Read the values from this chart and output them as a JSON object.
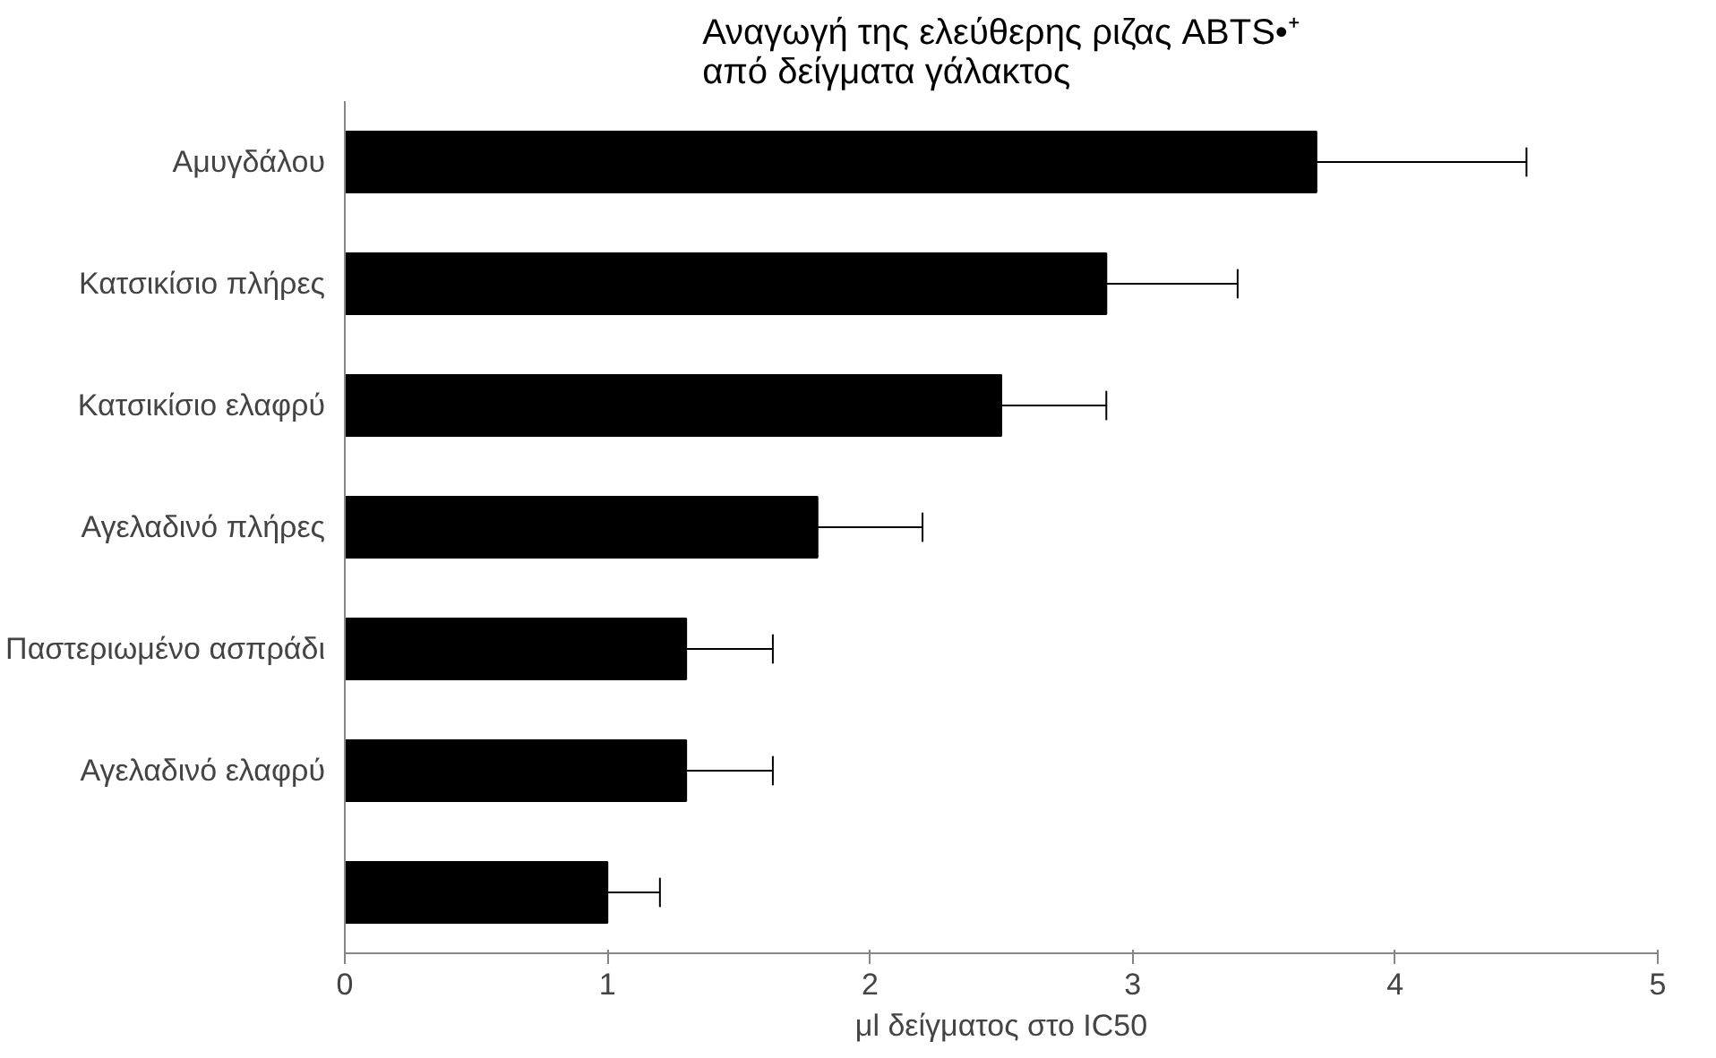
{
  "chart_data": {
    "type": "bar",
    "orientation": "horizontal",
    "title": "Αναγωγή της ελεύθερης ριζας ABTS•⁺\nαπό δείγματα γάλακτος",
    "xlabel": "μl δείγματος στο IC50",
    "categories": [
      "Αμυγδάλου",
      "Κατσικίσιο πλήρες",
      "Κατσικίσιο ελαφρύ",
      "Αγελαδινό πλήρες",
      "Παστεριωμένο ασπράδι",
      "Αγελαδινό ελαφρύ",
      null
    ],
    "values": [
      3.7,
      2.9,
      2.5,
      1.8,
      1.3,
      1.3,
      1.0
    ],
    "errors": [
      [
        3.7,
        4.5
      ],
      [
        2.9,
        3.4
      ],
      [
        2.5,
        2.9
      ],
      [
        1.8,
        2.2
      ],
      [
        1.3,
        1.63
      ],
      [
        1.3,
        1.63
      ],
      [
        1.0,
        1.2
      ]
    ],
    "color": "#000000",
    "xlim": [
      0,
      5
    ],
    "xticks": [
      0,
      1,
      2,
      3,
      4,
      5
    ],
    "grid": false
  }
}
